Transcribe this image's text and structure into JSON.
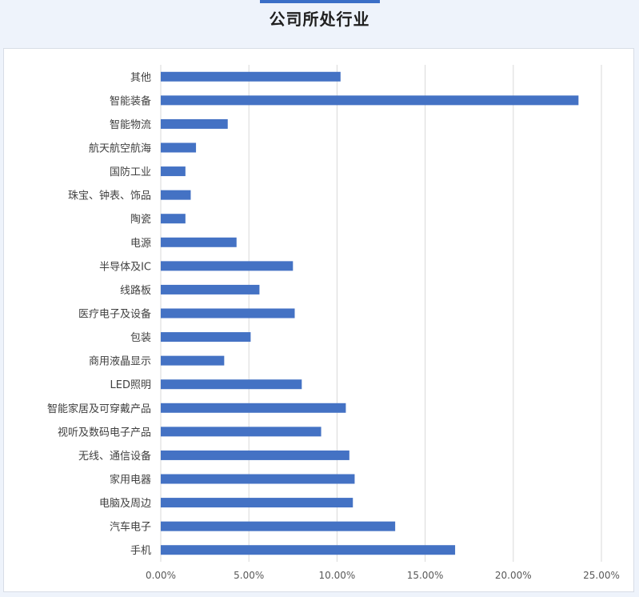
{
  "page": {
    "title": "公司所处行业"
  },
  "chart_data": {
    "type": "bar",
    "orientation": "horizontal",
    "title": "公司所处行业",
    "categories": [
      "手机",
      "汽车电子",
      "电脑及周边",
      "家用电器",
      "无线、通信设备",
      "视听及数码电子产品",
      "智能家居及可穿戴产品",
      "LED照明",
      "商用液晶显示",
      "包装",
      "医疗电子及设备",
      "线路板",
      "半导体及IC",
      "电源",
      "陶瓷",
      "珠宝、钟表、饰品",
      "国防工业",
      "航天航空航海",
      "智能物流",
      "智能装备",
      "其他"
    ],
    "values": [
      16.7,
      13.3,
      10.9,
      11.0,
      10.7,
      9.1,
      10.5,
      8.0,
      3.6,
      5.1,
      7.6,
      5.6,
      7.5,
      4.3,
      1.4,
      1.7,
      1.4,
      2.0,
      3.8,
      23.7,
      10.2
    ],
    "xlim": [
      0,
      25
    ],
    "xticks": [
      "0.00%",
      "5.00%",
      "10.00%",
      "15.00%",
      "20.00%",
      "25.00%"
    ],
    "xtick_values": [
      0,
      5,
      10,
      15,
      20,
      25
    ],
    "unit": "%",
    "bar_color": "#4472c4",
    "grid_color": "#d9d9d9",
    "grid": "vertical",
    "legend": "none"
  }
}
